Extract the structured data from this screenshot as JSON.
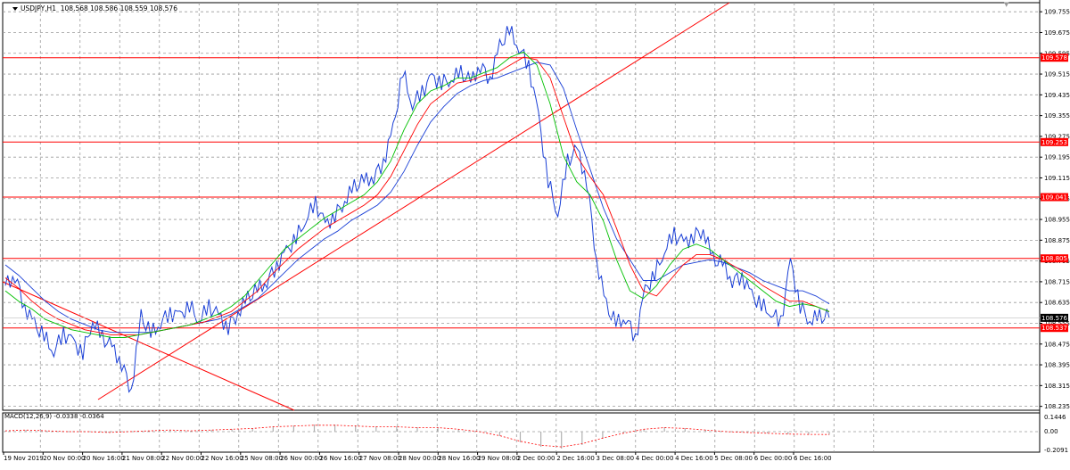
{
  "header": {
    "symbol": "USDJPY,H1",
    "ohlc": "108.568 108.586 108.559 108.576"
  },
  "macd_panel": {
    "label": "MACD(12,26,9) -0.0338 -0.0364",
    "ticks": [
      "0.1446",
      "0.00",
      "-0.2091"
    ]
  },
  "colors": {
    "price": "#1a3fd6",
    "ma_green": "#00c000",
    "ma_red": "#ff0000",
    "ma_blue": "#1a3fd6",
    "level": "#ff0000",
    "grid": "#9a9a9a"
  },
  "chart_data": {
    "type": "line",
    "price_axis_ticks": [
      "109.755",
      "109.675",
      "109.595",
      "109.515",
      "109.435",
      "109.355",
      "109.275",
      "109.195",
      "109.115",
      "109.035",
      "108.955",
      "108.875",
      "108.795",
      "108.715",
      "108.635",
      "108.555",
      "108.475",
      "108.395",
      "108.315",
      "108.235"
    ],
    "time_axis_ticks": [
      "19 Nov 2019",
      "20 Nov 00:00",
      "20 Nov 16:00",
      "21 Nov 08:00",
      "22 Nov 00:00",
      "22 Nov 16:00",
      "25 Nov 08:00",
      "26 Nov 00:00",
      "26 Nov 16:00",
      "27 Nov 08:00",
      "28 Nov 00:00",
      "28 Nov 16:00",
      "29 Nov 08:00",
      "2 Dec 00:00",
      "2 Dec 16:00",
      "3 Dec 08:00",
      "4 Dec 00:00",
      "4 Dec 16:00",
      "5 Dec 08:00",
      "6 Dec 00:00",
      "6 Dec 16:00"
    ],
    "ylim": [
      108.22,
      109.79
    ],
    "grid": true,
    "horizontal_levels": [
      "109.578",
      "109.253",
      "109.041",
      "108.805",
      "108.537"
    ],
    "current_price": "108.576",
    "price_series": [
      108.7,
      108.74,
      108.62,
      108.55,
      108.5,
      108.45,
      108.52,
      108.48,
      108.44,
      108.57,
      108.5,
      108.46,
      108.4,
      108.3,
      108.58,
      108.51,
      108.56,
      108.6,
      108.58,
      108.62,
      108.57,
      108.62,
      108.58,
      108.54,
      108.6,
      108.65,
      108.68,
      108.72,
      108.78,
      108.83,
      108.88,
      108.96,
      109.02,
      108.93,
      108.97,
      109.03,
      109.08,
      109.1,
      109.12,
      109.18,
      109.3,
      109.52,
      109.4,
      109.45,
      109.5,
      109.48,
      109.5,
      109.52,
      109.48,
      109.55,
      109.5,
      109.62,
      109.68,
      109.62,
      109.55,
      109.35,
      109.1,
      108.98,
      109.18,
      109.22,
      109.1,
      108.8,
      108.62,
      108.55,
      108.58,
      108.5,
      108.68,
      108.74,
      108.84,
      108.9,
      108.86,
      108.89,
      108.92,
      108.8,
      108.78,
      108.72,
      108.74,
      108.66,
      108.62,
      108.6,
      108.56,
      108.79,
      108.62,
      108.57,
      108.58,
      108.576
    ],
    "ma_green": [
      108.68,
      108.64,
      108.61,
      108.57,
      108.55,
      108.53,
      108.52,
      108.51,
      108.5,
      108.5,
      108.51,
      108.52,
      108.53,
      108.54,
      108.55,
      108.57,
      108.59,
      108.62,
      108.66,
      108.72,
      108.78,
      108.84,
      108.88,
      108.92,
      108.96,
      108.99,
      109.02,
      109.05,
      109.1,
      109.18,
      109.3,
      109.4,
      109.45,
      109.47,
      109.5,
      109.5,
      109.52,
      109.54,
      109.58,
      109.6,
      109.55,
      109.4,
      109.2,
      109.1,
      109.05,
      108.95,
      108.8,
      108.68,
      108.65,
      108.7,
      108.78,
      108.84,
      108.86,
      108.84,
      108.8,
      108.76,
      108.72,
      108.68,
      108.64,
      108.62,
      108.63,
      108.62,
      108.6
    ],
    "ma_red": [
      108.73,
      108.69,
      108.64,
      108.6,
      108.57,
      108.55,
      108.53,
      108.52,
      108.51,
      108.51,
      108.51,
      108.52,
      108.53,
      108.54,
      108.55,
      108.56,
      108.58,
      108.6,
      108.64,
      108.68,
      108.74,
      108.79,
      108.84,
      108.88,
      108.92,
      108.95,
      108.98,
      109.01,
      109.05,
      109.12,
      109.22,
      109.32,
      109.4,
      109.44,
      109.48,
      109.49,
      109.51,
      109.52,
      109.55,
      109.58,
      109.57,
      109.5,
      109.35,
      109.2,
      109.12,
      109.05,
      108.92,
      108.78,
      108.68,
      108.66,
      108.72,
      108.78,
      108.82,
      108.82,
      108.8,
      108.77,
      108.74,
      108.7,
      108.67,
      108.64,
      108.64,
      108.62,
      108.6
    ],
    "ma_blue": [
      108.78,
      108.74,
      108.69,
      108.64,
      108.6,
      108.57,
      108.55,
      108.53,
      108.52,
      108.52,
      108.52,
      108.52,
      108.53,
      108.54,
      108.55,
      108.56,
      108.57,
      108.59,
      108.62,
      108.65,
      108.7,
      108.75,
      108.8,
      108.84,
      108.88,
      108.91,
      108.95,
      108.98,
      109.01,
      109.06,
      109.14,
      109.24,
      109.33,
      109.39,
      109.44,
      109.47,
      109.49,
      109.5,
      109.52,
      109.54,
      109.56,
      109.55,
      109.46,
      109.3,
      109.15,
      109.0,
      108.88,
      108.8,
      108.72,
      108.72,
      108.75,
      108.78,
      108.79,
      108.8,
      108.79,
      108.77,
      108.75,
      108.72,
      108.7,
      108.68,
      108.68,
      108.66,
      108.63
    ],
    "macd_signal": [
      0.01,
      0.02,
      0.01,
      0.0,
      0.0,
      -0.01,
      0.0,
      0.01,
      0.02,
      0.01,
      0.02,
      0.03,
      0.04,
      0.06,
      0.07,
      0.08,
      0.08,
      0.07,
      0.06,
      0.06,
      0.05,
      0.05,
      0.03,
      0.0,
      -0.05,
      -0.12,
      -0.17,
      -0.19,
      -0.15,
      -0.08,
      -0.02,
      0.03,
      0.05,
      0.04,
      0.02,
      0.0,
      -0.01,
      -0.02,
      -0.03,
      -0.035,
      -0.036
    ]
  }
}
